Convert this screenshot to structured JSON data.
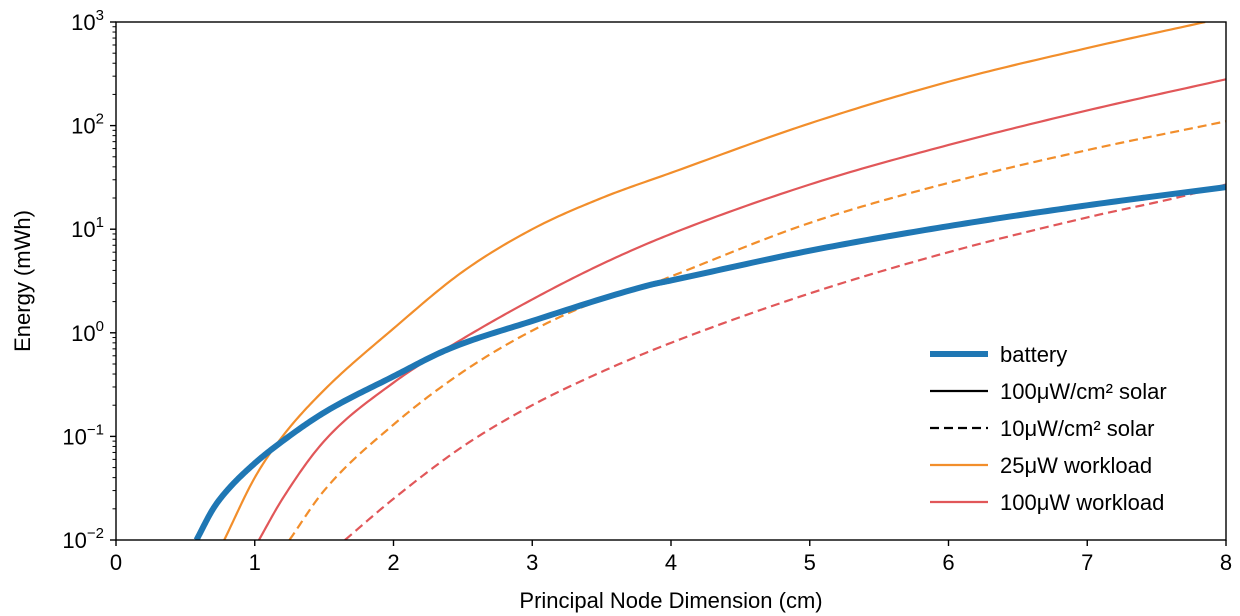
{
  "chart_data": {
    "type": "line",
    "title": "",
    "xlabel": "Principal Node Dimension (cm)",
    "ylabel": "Energy (mWh)",
    "xlim": [
      0,
      8
    ],
    "ylim": [
      0.01,
      1000
    ],
    "yscale": "log",
    "grid": false,
    "legend_position": "lower-right",
    "x_ticks": [
      {
        "value": 0,
        "label": "0"
      },
      {
        "value": 1,
        "label": "1"
      },
      {
        "value": 2,
        "label": "2"
      },
      {
        "value": 3,
        "label": "3"
      },
      {
        "value": 4,
        "label": "4"
      },
      {
        "value": 5,
        "label": "5"
      },
      {
        "value": 6,
        "label": "6"
      },
      {
        "value": 7,
        "label": "7"
      },
      {
        "value": 8,
        "label": "8"
      }
    ],
    "y_ticks": [
      {
        "value": 0.01,
        "base": "10",
        "exp": "−2"
      },
      {
        "value": 0.1,
        "base": "10",
        "exp": "−1"
      },
      {
        "value": 1,
        "base": "10",
        "exp": "0"
      },
      {
        "value": 10,
        "base": "10",
        "exp": "1"
      },
      {
        "value": 100,
        "base": "10",
        "exp": "2"
      },
      {
        "value": 1000,
        "base": "10",
        "exp": "3"
      }
    ],
    "legend": [
      {
        "label": "battery",
        "color": "#1f77b4",
        "dash": "solid",
        "width": "thick"
      },
      {
        "label": "100μW/cm² solar",
        "color": "#000000",
        "dash": "solid",
        "width": "normal"
      },
      {
        "label": "10μW/cm² solar",
        "color": "#000000",
        "dash": "dashed",
        "width": "normal"
      },
      {
        "label": "25μW workload",
        "color": "#f28e2b",
        "dash": "solid",
        "width": "normal"
      },
      {
        "label": "100μW workload",
        "color": "#e15759",
        "dash": "solid",
        "width": "normal"
      }
    ],
    "series": [
      {
        "name": "battery",
        "color": "#1f77b4",
        "dash": "solid",
        "width": "thick",
        "x": [
          0.58,
          0.7,
          0.8,
          1.0,
          1.2,
          1.5,
          2.0,
          2.4,
          3.0,
          3.85,
          4.0,
          5.0,
          6.0,
          7.0,
          8.0
        ],
        "y": [
          0.01,
          0.02,
          0.03,
          0.055,
          0.09,
          0.17,
          0.38,
          0.7,
          1.3,
          2.9,
          3.2,
          6.2,
          10.7,
          17.0,
          25.5
        ]
      },
      {
        "name": "100μW/cm² solar · 25μW workload",
        "color": "#f28e2b",
        "dash": "solid",
        "width": "normal",
        "x": [
          0.78,
          1.0,
          1.2,
          1.5,
          2.0,
          2.5,
          3.0,
          3.5,
          4.0,
          5.0,
          6.0,
          7.0,
          7.85
        ],
        "y": [
          0.01,
          0.04,
          0.1,
          0.28,
          1.1,
          3.9,
          10.0,
          20.0,
          35.0,
          105,
          265,
          560,
          1000
        ]
      },
      {
        "name": "100μW/cm² solar · 100μW workload",
        "color": "#e15759",
        "dash": "solid",
        "width": "normal",
        "x": [
          1.03,
          1.2,
          1.5,
          2.0,
          2.45,
          3.0,
          3.5,
          4.0,
          5.0,
          6.0,
          7.0,
          8.0
        ],
        "y": [
          0.01,
          0.025,
          0.09,
          0.33,
          0.8,
          2.1,
          4.6,
          9.0,
          27.0,
          65.0,
          140,
          280
        ]
      },
      {
        "name": "10μW/cm² solar · 25μW workload",
        "color": "#f28e2b",
        "dash": "dashed",
        "width": "normal",
        "x": [
          1.25,
          1.5,
          2.0,
          2.5,
          3.0,
          3.5,
          3.9,
          4.0,
          5.0,
          6.0,
          7.0,
          8.0
        ],
        "y": [
          0.01,
          0.03,
          0.13,
          0.42,
          1.05,
          2.1,
          3.1,
          3.5,
          11.5,
          28.0,
          58.0,
          110
        ]
      },
      {
        "name": "10μW/cm² solar · 100μW workload",
        "color": "#e15759",
        "dash": "dashed",
        "width": "normal",
        "x": [
          1.65,
          2.0,
          2.5,
          3.0,
          3.5,
          4.0,
          5.0,
          6.0,
          7.0,
          7.7,
          8.0
        ],
        "y": [
          0.01,
          0.025,
          0.08,
          0.2,
          0.42,
          0.8,
          2.4,
          6.0,
          13.0,
          21.0,
          27.0
        ]
      }
    ]
  }
}
